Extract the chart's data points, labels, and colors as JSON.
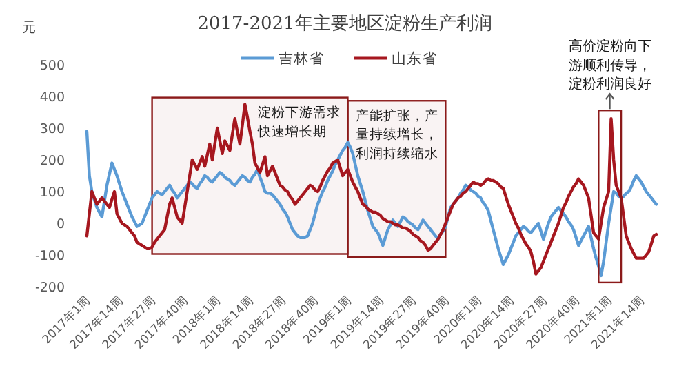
{
  "chart_data": {
    "type": "line",
    "title": "2017-2021年主要地区淀粉生产利润",
    "ylabel": "元",
    "ylim": [
      -200,
      500
    ],
    "yticks": [
      -200,
      -100,
      0,
      100,
      200,
      300,
      400,
      500
    ],
    "categories": [
      "2017年1周",
      null,
      null,
      null,
      null,
      null,
      null,
      null,
      null,
      null,
      null,
      null,
      null,
      "2017年14周",
      null,
      null,
      null,
      null,
      null,
      null,
      null,
      null,
      null,
      null,
      null,
      null,
      "2017年27周",
      null,
      null,
      null,
      null,
      null,
      null,
      null,
      null,
      null,
      null,
      null,
      null,
      "2017年40周",
      null,
      null,
      null,
      null,
      null,
      null,
      null,
      null,
      null,
      null,
      null,
      null,
      "2018年1周",
      null,
      null,
      null,
      null,
      null,
      null,
      null,
      null,
      null,
      null,
      null,
      null,
      "2018年14周",
      null,
      null,
      null,
      null,
      null,
      null,
      null,
      null,
      null,
      null,
      null,
      null,
      "2018年27周",
      null,
      null,
      null,
      null,
      null,
      null,
      null,
      null,
      null,
      null,
      null,
      null,
      "2018年40周",
      null,
      null,
      null,
      null,
      null,
      null,
      null,
      null,
      null,
      null,
      null,
      null,
      "2019年1周",
      null,
      null,
      null,
      null,
      null,
      null,
      null,
      null,
      null,
      null,
      null,
      null,
      "2019年14周",
      null,
      null,
      null,
      null,
      null,
      null,
      null,
      null,
      null,
      null,
      null,
      null,
      "2019年27周",
      null,
      null,
      null,
      null,
      null,
      null,
      null,
      null,
      null,
      null,
      null,
      null,
      "2019年40周",
      null,
      null,
      null,
      null,
      null,
      null,
      null,
      null,
      null,
      null,
      null,
      null,
      "2020年1周",
      null,
      null,
      null,
      null,
      null,
      null,
      null,
      null,
      null,
      null,
      null,
      null,
      "2020年14周",
      null,
      null,
      null,
      null,
      null,
      null,
      null,
      null,
      null,
      null,
      null,
      null,
      "2020年27周",
      null,
      null,
      null,
      null,
      null,
      null,
      null,
      null,
      null,
      null,
      null,
      null,
      "2020年40周",
      null,
      null,
      null,
      null,
      null,
      null,
      null,
      null,
      null,
      null,
      null,
      null,
      "2021年1周",
      null,
      null,
      null,
      null,
      null,
      null,
      null,
      null,
      null,
      null,
      null,
      null,
      "2021年14周",
      null,
      null,
      null,
      null,
      null,
      null
    ],
    "legend": "top",
    "marker": "none",
    "series": [
      {
        "name": "吉林省",
        "color": "#5b9bd5",
        "values": [
          290,
          150,
          100,
          75,
          50,
          35,
          20,
          70,
          120,
          155,
          190,
          170,
          150,
          125,
          100,
          80,
          60,
          40,
          20,
          5,
          -10,
          -5,
          0,
          20,
          40,
          60,
          80,
          90,
          100,
          95,
          90,
          100,
          110,
          120,
          105,
          95,
          80,
          90,
          100,
          110,
          120,
          130,
          125,
          115,
          110,
          125,
          135,
          150,
          145,
          135,
          130,
          140,
          150,
          160,
          155,
          145,
          140,
          135,
          125,
          120,
          130,
          140,
          150,
          145,
          135,
          130,
          145,
          155,
          170,
          145,
          125,
          100,
          95,
          95,
          90,
          80,
          70,
          60,
          45,
          35,
          20,
          0,
          -20,
          -30,
          -40,
          -45,
          -45,
          -45,
          -40,
          -20,
          0,
          30,
          60,
          80,
          100,
          115,
          135,
          150,
          165,
          185,
          200,
          215,
          230,
          240,
          255,
          240,
          220,
          185,
          150,
          125,
          100,
          70,
          40,
          15,
          -10,
          -20,
          -30,
          -50,
          -70,
          -45,
          -20,
          -5,
          10,
          0,
          -10,
          5,
          20,
          15,
          5,
          0,
          -5,
          -15,
          -20,
          -5,
          10,
          0,
          -10,
          -20,
          -30,
          -40,
          -50,
          -35,
          -25,
          -10,
          20,
          50,
          60,
          70,
          80,
          95,
          105,
          120,
          115,
          105,
          100,
          95,
          85,
          80,
          65,
          55,
          40,
          10,
          -20,
          -50,
          -80,
          -105,
          -130,
          -115,
          -100,
          -80,
          -60,
          -40,
          -30,
          -20,
          -10,
          -15,
          -25,
          -30,
          -20,
          -10,
          0,
          -25,
          -50,
          -25,
          0,
          20,
          30,
          40,
          50,
          40,
          30,
          20,
          5,
          -5,
          -20,
          -45,
          -70,
          -55,
          -40,
          -25,
          -10,
          -45,
          -80,
          -110,
          -135,
          -165,
          -120,
          -60,
          0,
          50,
          100,
          95,
          85,
          80,
          85,
          95,
          100,
          115,
          135,
          150,
          140,
          130,
          115,
          100,
          90,
          80,
          70,
          60
        ]
      },
      {
        "name": "山东省",
        "color": "#a6171f",
        "values": [
          -40,
          30,
          100,
          80,
          60,
          70,
          80,
          70,
          60,
          50,
          75,
          100,
          30,
          15,
          0,
          -5,
          -10,
          -20,
          -30,
          -40,
          -60,
          -65,
          -70,
          -75,
          -80,
          -80,
          -75,
          -60,
          -50,
          -40,
          -30,
          -20,
          20,
          60,
          80,
          50,
          20,
          10,
          0,
          50,
          100,
          150,
          200,
          185,
          170,
          190,
          210,
          180,
          215,
          250,
          200,
          250,
          300,
          260,
          220,
          260,
          245,
          230,
          280,
          330,
          290,
          250,
          310,
          375,
          335,
          290,
          250,
          190,
          175,
          160,
          185,
          210,
          150,
          165,
          180,
          160,
          140,
          120,
          115,
          105,
          100,
          85,
          75,
          60,
          70,
          80,
          90,
          100,
          110,
          120,
          115,
          105,
          100,
          115,
          135,
          150,
          165,
          175,
          190,
          195,
          200,
          175,
          150,
          160,
          170,
          150,
          130,
          115,
          100,
          80,
          60,
          55,
          45,
          40,
          35,
          35,
          30,
          25,
          15,
          10,
          5,
          5,
          0,
          -5,
          -5,
          -10,
          -15,
          -15,
          -20,
          -25,
          -35,
          -40,
          -45,
          -55,
          -60,
          -70,
          -85,
          -80,
          -70,
          -60,
          -50,
          -35,
          -20,
          0,
          20,
          40,
          60,
          70,
          80,
          85,
          95,
          100,
          110,
          120,
          130,
          125,
          125,
          120,
          125,
          135,
          140,
          135,
          135,
          130,
          125,
          115,
          110,
          85,
          60,
          40,
          20,
          0,
          -15,
          -35,
          -50,
          -65,
          -75,
          -90,
          -120,
          -160,
          -150,
          -140,
          -120,
          -100,
          -80,
          -60,
          -40,
          -20,
          0,
          25,
          50,
          65,
          85,
          100,
          115,
          125,
          140,
          130,
          120,
          100,
          80,
          25,
          -30,
          -40,
          -50,
          0,
          50,
          75,
          100,
          330,
          200,
          120,
          100,
          80,
          20,
          -40,
          -60,
          -80,
          -95,
          -110,
          -110,
          -110,
          -110,
          -100,
          -90,
          -65,
          -40,
          -35
        ]
      }
    ],
    "bands": [
      {
        "axis": "x",
        "from": "2017年27周",
        "to": "2019年1周",
        "label": "淀粉下游需求快速增长期",
        "color": "#8b1a1a"
      },
      {
        "axis": "x",
        "from": "2019年1周",
        "to": "2019年40周",
        "label": "产能扩张，产量持续增长，利润持续缩水",
        "color": "#8b1a1a"
      }
    ],
    "annotations": [
      {
        "text": "高价淀粉向下游顺利传导，淀粉利润良好",
        "x": "2021年1周",
        "y": 330
      }
    ]
  }
}
